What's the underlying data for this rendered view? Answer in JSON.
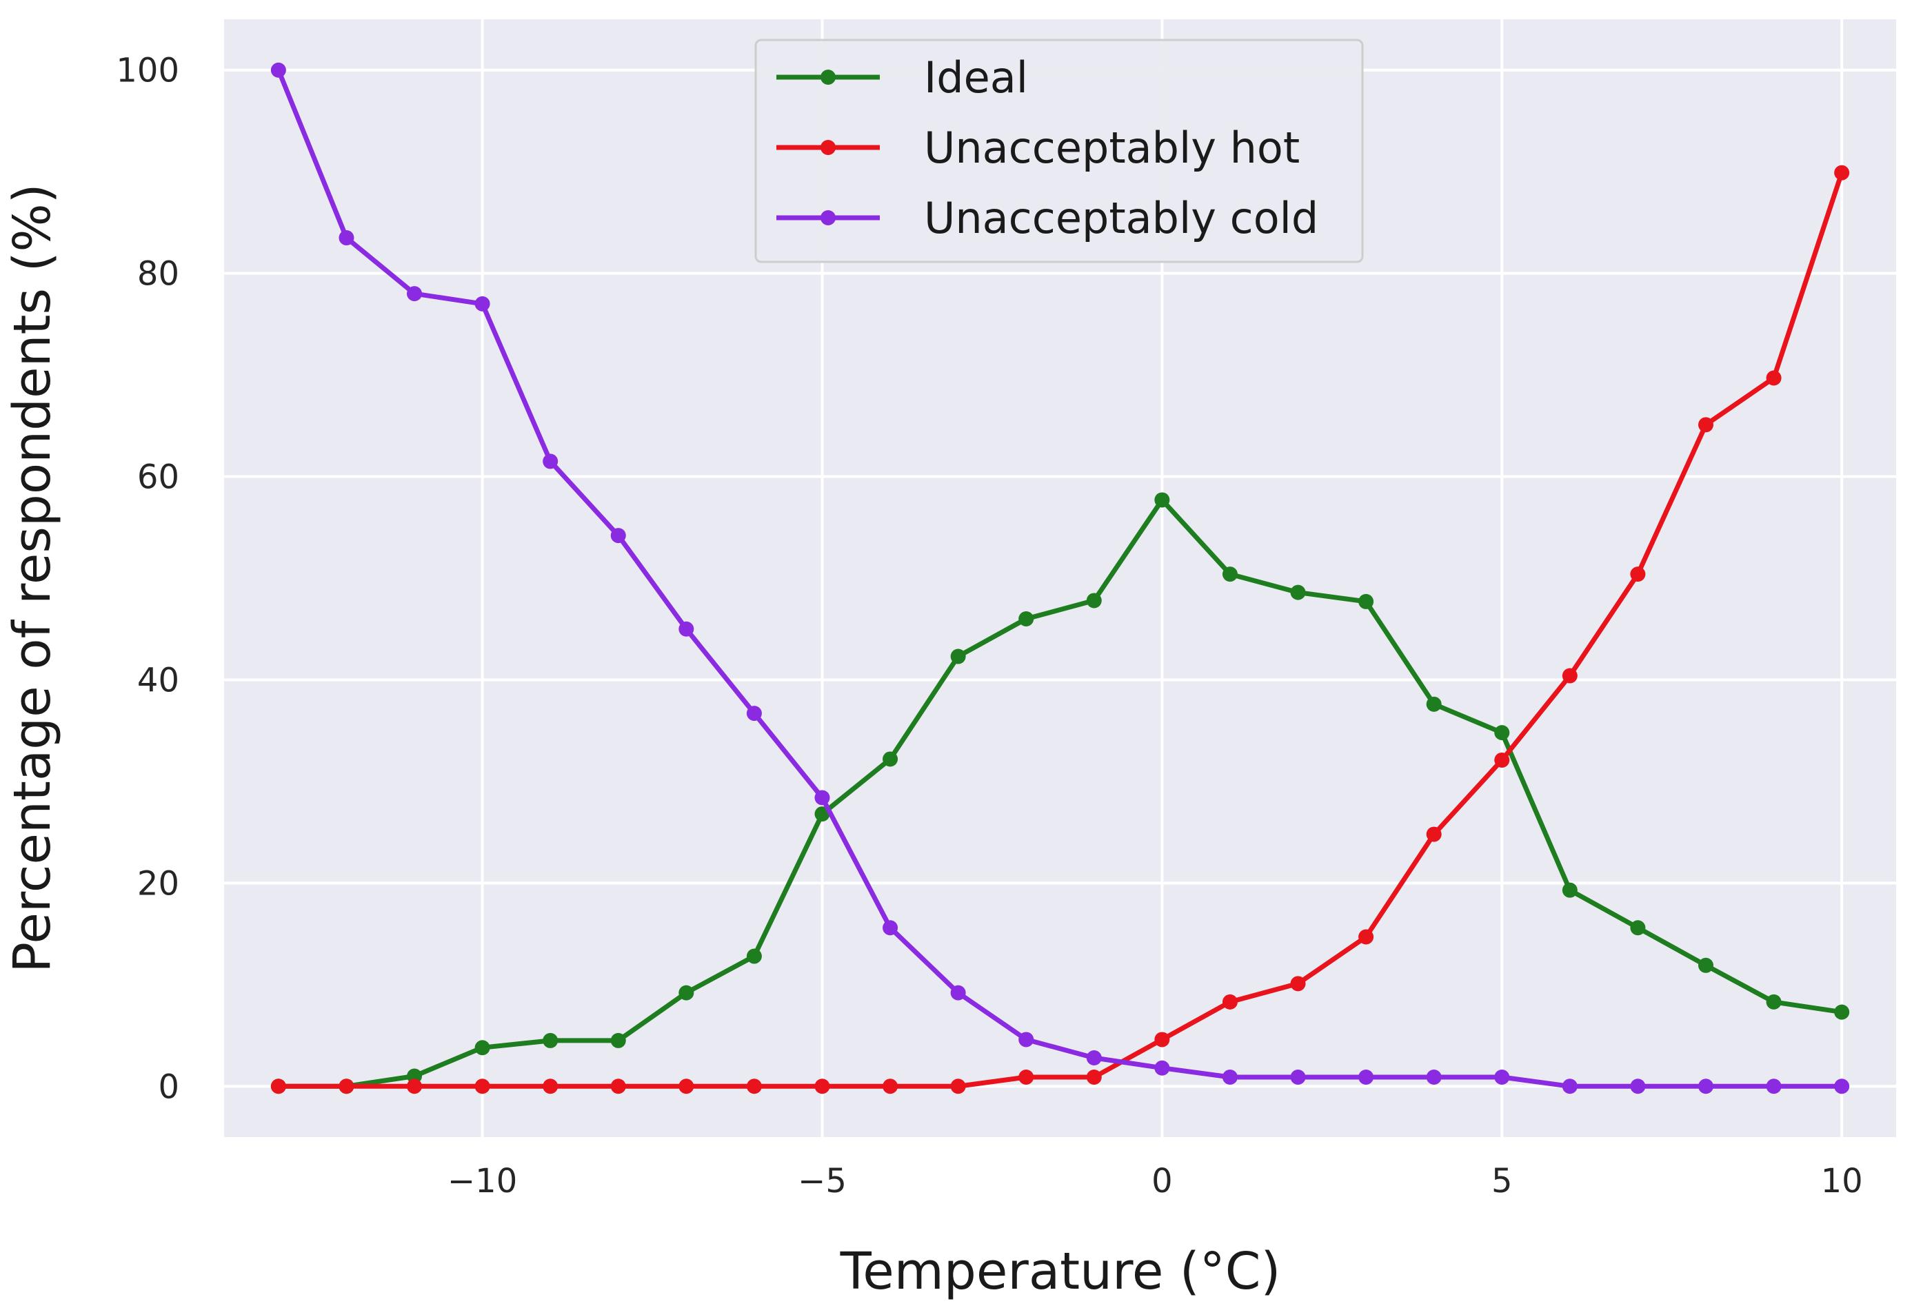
{
  "chart_data": {
    "type": "line",
    "title": "",
    "xlabel": "Temperature (°C)",
    "ylabel": "Percentage of respondents (%)",
    "xlim": [
      -13.8,
      10.8
    ],
    "ylim": [
      -5,
      105
    ],
    "xticks": [
      -10,
      -5,
      0,
      5,
      10
    ],
    "xtick_labels": [
      "−10",
      "−5",
      "0",
      "5",
      "10"
    ],
    "yticks": [
      0,
      20,
      40,
      60,
      80,
      100
    ],
    "ytick_labels": [
      "0",
      "20",
      "40",
      "60",
      "80",
      "100"
    ],
    "grid": true,
    "legend_position": "top-center",
    "x": [
      -13,
      -12,
      -11,
      -10,
      -9,
      -8,
      -7,
      -6,
      -5,
      -4,
      -3,
      -2,
      -1,
      0,
      1,
      2,
      3,
      4,
      5,
      6,
      7,
      8,
      9,
      10
    ],
    "series": [
      {
        "name": "Ideal",
        "color": "#1e7d1e",
        "values": [
          0,
          0,
          1,
          3.8,
          4.5,
          4.5,
          9.2,
          12.8,
          26.8,
          32.2,
          42.3,
          46,
          47.8,
          57.7,
          50.4,
          48.6,
          47.7,
          37.6,
          34.8,
          19.3,
          15.6,
          11.9,
          8.3,
          7.3
        ]
      },
      {
        "name": "Unacceptably hot",
        "color": "#e8131b",
        "values": [
          0,
          0,
          0,
          0,
          0,
          0,
          0,
          0,
          0,
          0,
          0,
          0.9,
          0.9,
          4.6,
          8.3,
          10.1,
          14.7,
          24.8,
          32.1,
          40.4,
          50.4,
          65.1,
          69.7,
          89.9
        ]
      },
      {
        "name": "Unacceptably cold",
        "color": "#8a2be2",
        "values": [
          100,
          83.5,
          78,
          77,
          61.5,
          54.2,
          45,
          36.7,
          28.4,
          15.6,
          9.2,
          4.6,
          2.8,
          1.8,
          0.9,
          0.9,
          0.9,
          0.9,
          0.9,
          0,
          0,
          0,
          0,
          0
        ]
      }
    ]
  }
}
